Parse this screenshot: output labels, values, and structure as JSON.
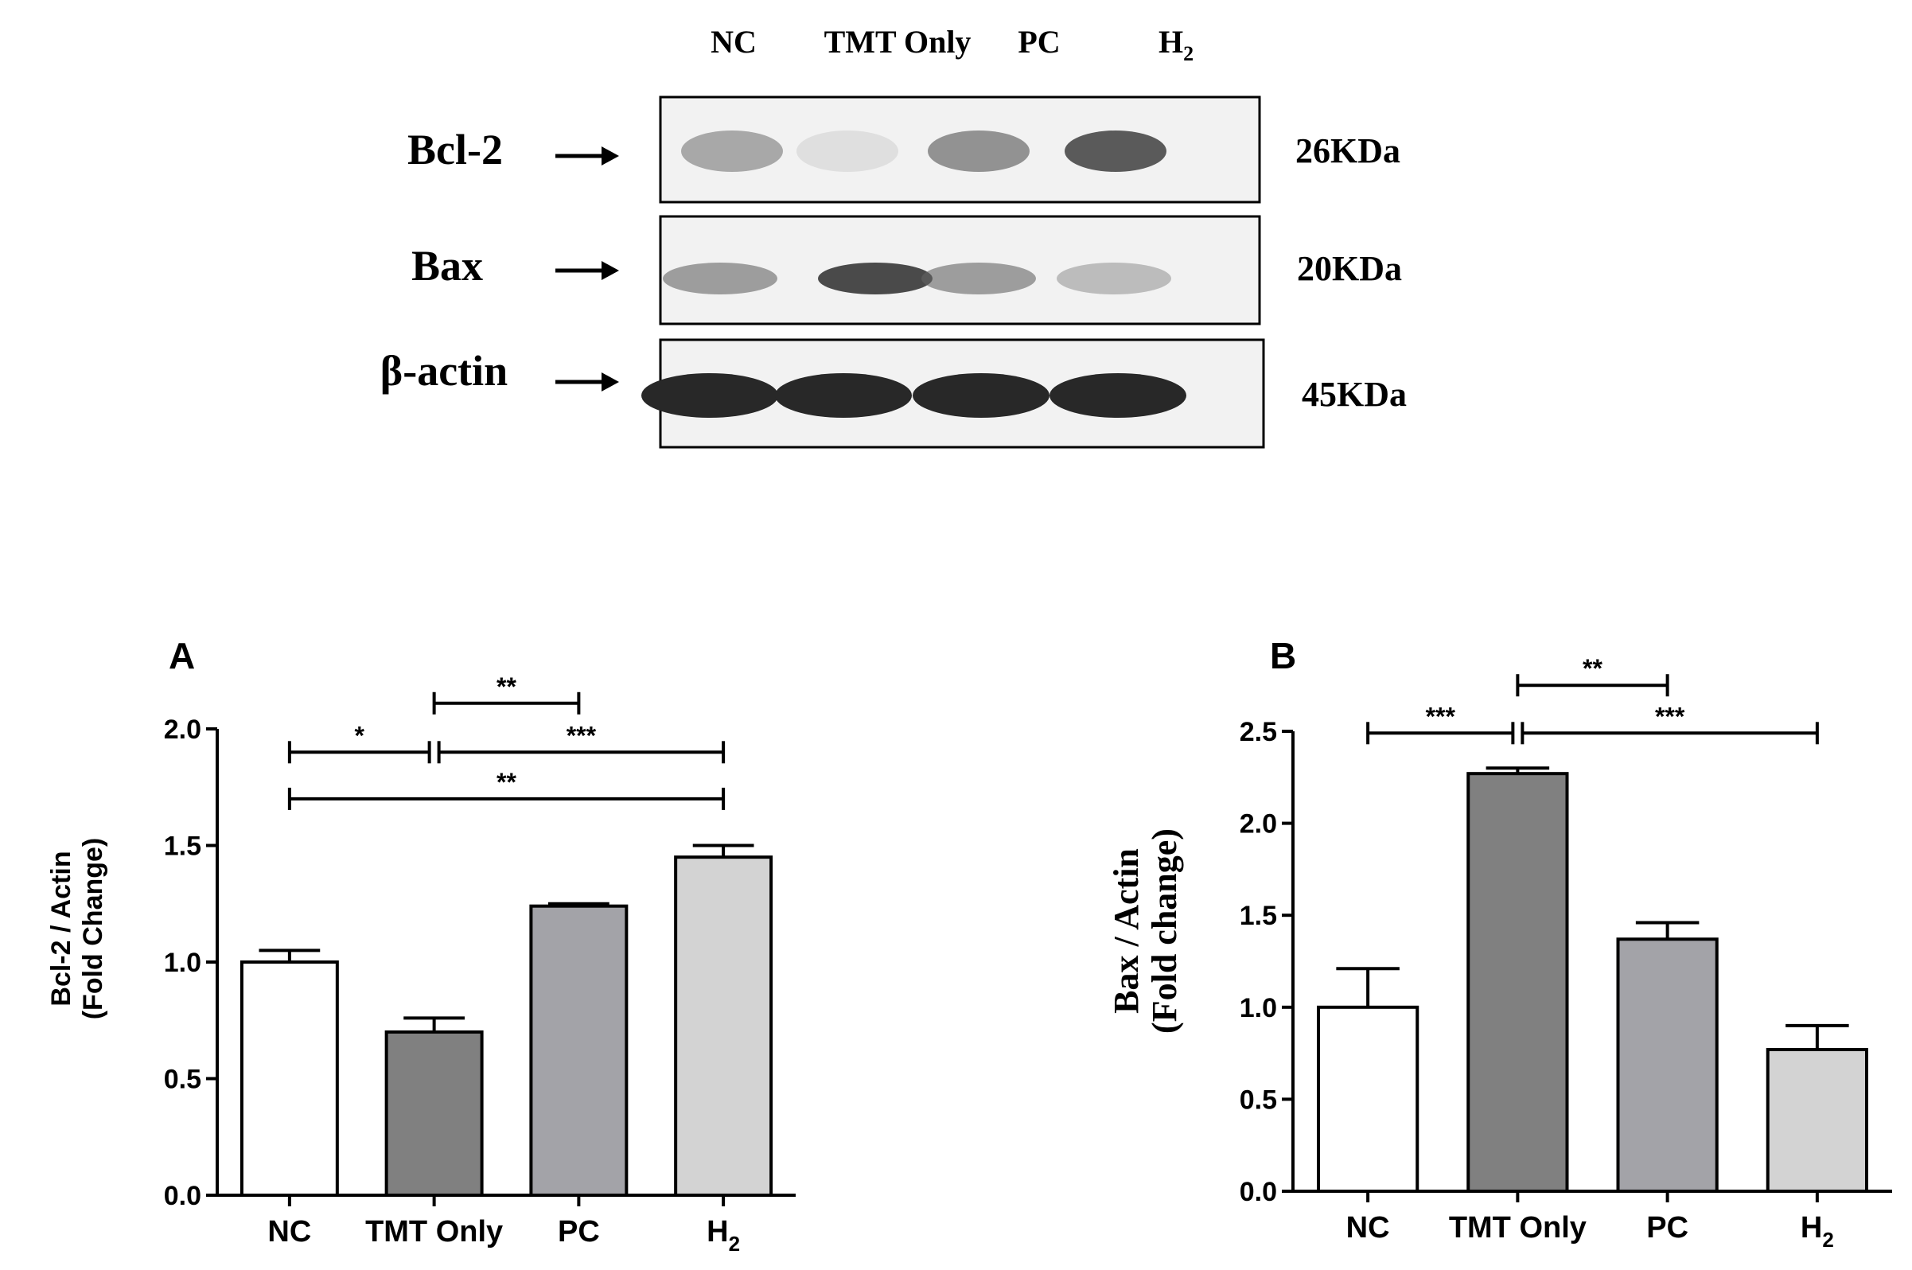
{
  "blot": {
    "lane_labels": [
      "NC",
      "TMT Only",
      "PC",
      "H"
    ],
    "lane_label_sub": "2",
    "rows": [
      {
        "protein": "Bcl-2",
        "size": "26KDa",
        "band_intensity": [
          0.55,
          0.15,
          0.65,
          0.85
        ]
      },
      {
        "protein": "Bax",
        "size": "20KDa",
        "band_intensity": [
          0.6,
          0.9,
          0.6,
          0.45
        ]
      },
      {
        "protein": "β-actin",
        "size": "45KDa",
        "band_intensity": [
          1.0,
          1.0,
          1.0,
          1.0
        ]
      }
    ]
  },
  "chart_data": [
    {
      "type": "bar",
      "panel_label": "A",
      "categories": [
        "NC",
        "TMT Only",
        "PC",
        "H"
      ],
      "category_subscripts": [
        "",
        "",
        "",
        "2"
      ],
      "values": [
        1.0,
        0.7,
        1.24,
        1.45
      ],
      "errors": [
        0.05,
        0.06,
        0.01,
        0.05
      ],
      "bar_colors": [
        "#ffffff",
        "#808080",
        "#a3a3a8",
        "#d3d3d3"
      ],
      "ylabel_line1": "Bcl-2 / Actin",
      "ylabel_line2": "(Fold Change)",
      "ylim": [
        0,
        2.0
      ],
      "yticks": [
        "0.0",
        "0.5",
        "1.0",
        "1.5",
        "2.0"
      ],
      "significance": [
        {
          "from": "NC",
          "to": "TMT Only",
          "label": "*",
          "y": 1.9
        },
        {
          "from": "TMT Only",
          "to": "PC",
          "label": "**",
          "y": 2.11
        },
        {
          "from": "TMT Only",
          "to": "H",
          "label": "***",
          "y": 1.9
        },
        {
          "from": "NC",
          "to": "H",
          "label": "**",
          "y": 1.7
        }
      ]
    },
    {
      "type": "bar",
      "panel_label": "B",
      "categories": [
        "NC",
        "TMT Only",
        "PC",
        "H"
      ],
      "category_subscripts": [
        "",
        "",
        "",
        "2"
      ],
      "values": [
        1.0,
        2.27,
        1.37,
        0.77
      ],
      "errors": [
        0.21,
        0.03,
        0.09,
        0.13
      ],
      "bar_colors": [
        "#ffffff",
        "#808080",
        "#a3a3a8",
        "#d3d3d3"
      ],
      "ylabel_line1": "Bax / Actin",
      "ylabel_line2": "(Fold change)",
      "ylim": [
        0,
        2.5
      ],
      "yticks": [
        "0.0",
        "0.5",
        "1.0",
        "1.5",
        "2.0",
        "2.5"
      ],
      "significance": [
        {
          "from": "NC",
          "to": "TMT Only",
          "label": "***",
          "y": 2.49
        },
        {
          "from": "TMT Only",
          "to": "PC",
          "label": "**",
          "y": 2.75
        },
        {
          "from": "TMT Only",
          "to": "H",
          "label": "***",
          "y": 2.49
        }
      ]
    }
  ]
}
